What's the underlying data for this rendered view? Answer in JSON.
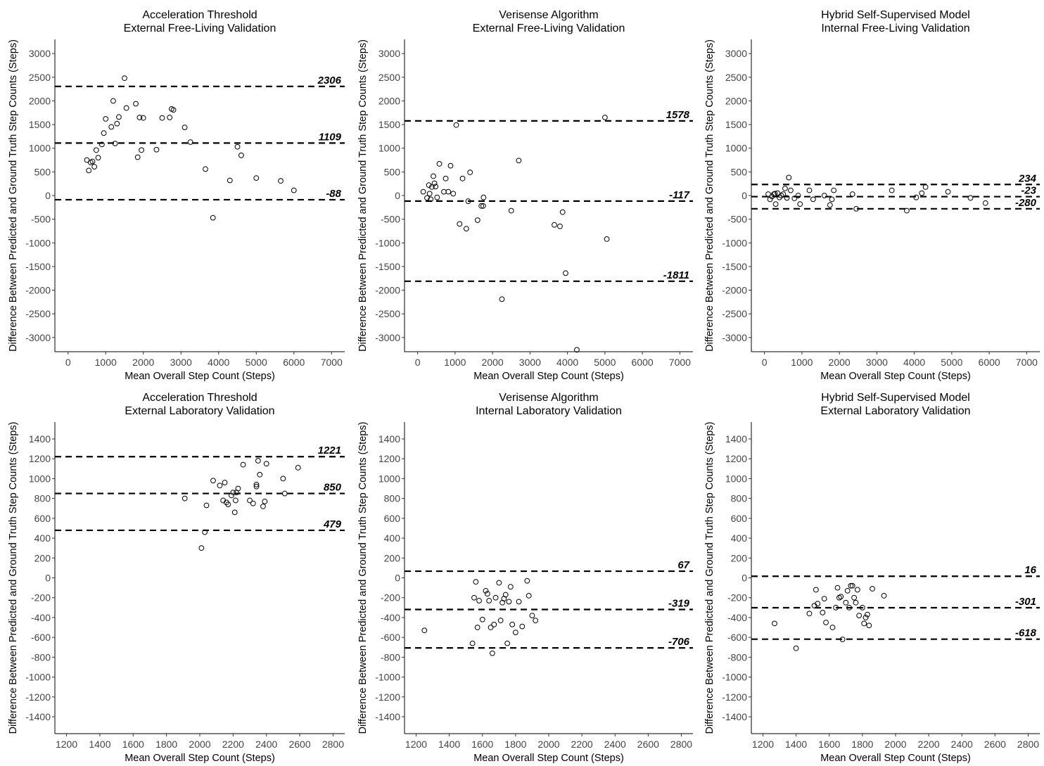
{
  "figure": {
    "x_axis_title": "Mean Overall Step Count (Steps)",
    "y_axis_title": "Difference Between Predicted and Ground Truth Step Counts (Steps)"
  },
  "chart_data": [
    {
      "type": "scatter",
      "title_lines": [
        "Acceleration Threshold",
        "External Free-Living Validation"
      ],
      "xlabel": "Mean Overall Step Count (Steps)",
      "ylabel": "Difference Between Predicted and Ground Truth Step Counts (Steps)",
      "xlim": [
        -350,
        7350
      ],
      "ylim": [
        -3300,
        3300
      ],
      "x_ticks": [
        0,
        1000,
        2000,
        3000,
        4000,
        5000,
        6000,
        7000
      ],
      "y_ticks": [
        -3000,
        -2500,
        -2000,
        -1500,
        -1000,
        -500,
        0,
        500,
        1000,
        1500,
        2000,
        2500,
        3000
      ],
      "reference_lines": [
        {
          "value": 2306,
          "label": "2306"
        },
        {
          "value": 1109,
          "label": "1109"
        },
        {
          "value": -88,
          "label": "-88"
        }
      ],
      "points": [
        [
          500,
          750
        ],
        [
          550,
          530
        ],
        [
          600,
          700
        ],
        [
          650,
          720
        ],
        [
          700,
          610
        ],
        [
          750,
          960
        ],
        [
          800,
          800
        ],
        [
          900,
          1080
        ],
        [
          950,
          1320
        ],
        [
          1000,
          1620
        ],
        [
          1150,
          1450
        ],
        [
          1200,
          2000
        ],
        [
          1250,
          1100
        ],
        [
          1300,
          1520
        ],
        [
          1350,
          1660
        ],
        [
          1500,
          2480
        ],
        [
          1550,
          1850
        ],
        [
          1800,
          1940
        ],
        [
          1850,
          810
        ],
        [
          1900,
          1650
        ],
        [
          1950,
          960
        ],
        [
          2000,
          1640
        ],
        [
          2350,
          970
        ],
        [
          2500,
          1640
        ],
        [
          2700,
          1650
        ],
        [
          2750,
          1830
        ],
        [
          2800,
          1810
        ],
        [
          3100,
          1440
        ],
        [
          3250,
          1130
        ],
        [
          3650,
          560
        ],
        [
          3850,
          -470
        ],
        [
          4300,
          320
        ],
        [
          4500,
          1030
        ],
        [
          4600,
          850
        ],
        [
          5000,
          370
        ],
        [
          5650,
          310
        ],
        [
          6000,
          110
        ]
      ]
    },
    {
      "type": "scatter",
      "title_lines": [
        "Verisense Algorithm",
        "External Free-Living Validation"
      ],
      "xlabel": "Mean Overall Step Count (Steps)",
      "ylabel": "Difference Between Predicted and Ground Truth Step Counts (Steps)",
      "xlim": [
        -350,
        7350
      ],
      "ylim": [
        -3300,
        3300
      ],
      "x_ticks": [
        0,
        1000,
        2000,
        3000,
        4000,
        5000,
        6000,
        7000
      ],
      "y_ticks": [
        -3000,
        -2500,
        -2000,
        -1500,
        -1000,
        -500,
        0,
        500,
        1000,
        1500,
        2000,
        2500,
        3000
      ],
      "reference_lines": [
        {
          "value": 1578,
          "label": "1578"
        },
        {
          "value": -117,
          "label": "-117"
        },
        {
          "value": -1811,
          "label": "-1811"
        }
      ],
      "points": [
        [
          150,
          80
        ],
        [
          250,
          -50
        ],
        [
          300,
          220
        ],
        [
          320,
          40
        ],
        [
          350,
          -80
        ],
        [
          380,
          180
        ],
        [
          420,
          410
        ],
        [
          450,
          260
        ],
        [
          480,
          190
        ],
        [
          520,
          -40
        ],
        [
          580,
          670
        ],
        [
          700,
          80
        ],
        [
          750,
          360
        ],
        [
          820,
          80
        ],
        [
          880,
          630
        ],
        [
          950,
          40
        ],
        [
          1030,
          1490
        ],
        [
          1120,
          -600
        ],
        [
          1200,
          360
        ],
        [
          1300,
          -700
        ],
        [
          1350,
          -120
        ],
        [
          1400,
          490
        ],
        [
          1600,
          -520
        ],
        [
          1700,
          -220
        ],
        [
          1750,
          -220
        ],
        [
          1760,
          -40
        ],
        [
          2500,
          -320
        ],
        [
          2700,
          740
        ],
        [
          3650,
          -620
        ],
        [
          3800,
          -650
        ],
        [
          3870,
          -350
        ],
        [
          3950,
          -1640
        ],
        [
          4250,
          -3260
        ],
        [
          5000,
          1650
        ],
        [
          5050,
          -920
        ],
        [
          2250,
          -2190
        ]
      ]
    },
    {
      "type": "scatter",
      "title_lines": [
        "Hybrid Self-Supervised Model",
        "Internal Free-Living Validation"
      ],
      "xlabel": "Mean Overall Step Count (Steps)",
      "ylabel": "Difference Between Predicted and Ground Truth Step Counts (Steps)",
      "xlim": [
        -350,
        7350
      ],
      "ylim": [
        -3300,
        3300
      ],
      "x_ticks": [
        0,
        1000,
        2000,
        3000,
        4000,
        5000,
        6000,
        7000
      ],
      "y_ticks": [
        -3000,
        -2500,
        -2000,
        -1500,
        -1000,
        -500,
        0,
        500,
        1000,
        1500,
        2000,
        2500,
        3000
      ],
      "reference_lines": [
        {
          "value": 234,
          "label": "234"
        },
        {
          "value": -23,
          "label": "-23"
        },
        {
          "value": -280,
          "label": "-280"
        }
      ],
      "points": [
        [
          100,
          30
        ],
        [
          150,
          -80
        ],
        [
          200,
          -20
        ],
        [
          250,
          30
        ],
        [
          280,
          40
        ],
        [
          300,
          -180
        ],
        [
          350,
          50
        ],
        [
          400,
          -40
        ],
        [
          450,
          0
        ],
        [
          500,
          30
        ],
        [
          550,
          150
        ],
        [
          600,
          -50
        ],
        [
          650,
          380
        ],
        [
          700,
          110
        ],
        [
          800,
          -60
        ],
        [
          900,
          0
        ],
        [
          950,
          -180
        ],
        [
          1200,
          110
        ],
        [
          1300,
          -80
        ],
        [
          1600,
          0
        ],
        [
          1750,
          -200
        ],
        [
          1800,
          -80
        ],
        [
          1850,
          110
        ],
        [
          2350,
          30
        ],
        [
          2450,
          -280
        ],
        [
          3400,
          110
        ],
        [
          3800,
          -320
        ],
        [
          4050,
          -40
        ],
        [
          4200,
          50
        ],
        [
          4300,
          180
        ],
        [
          4900,
          80
        ],
        [
          5500,
          -50
        ],
        [
          5900,
          -160
        ]
      ]
    },
    {
      "type": "scatter",
      "title_lines": [
        "Acceleration Threshold",
        "External Laboratory Validation"
      ],
      "xlabel": "Mean Overall Step Count (Steps)",
      "ylabel": "Difference Between Predicted and Ground Truth Step Counts (Steps)",
      "xlim": [
        1130,
        2870
      ],
      "ylim": [
        -1570,
        1570
      ],
      "x_ticks": [
        1200,
        1400,
        1600,
        1800,
        2000,
        2200,
        2400,
        2600,
        2800
      ],
      "y_ticks": [
        -1400,
        -1200,
        -1000,
        -800,
        -600,
        -400,
        -200,
        0,
        200,
        400,
        600,
        800,
        1000,
        1200,
        1400
      ],
      "reference_lines": [
        {
          "value": 1221,
          "label": "1221"
        },
        {
          "value": 850,
          "label": "850"
        },
        {
          "value": 479,
          "label": "479"
        }
      ],
      "points": [
        [
          1910,
          800
        ],
        [
          2010,
          300
        ],
        [
          2030,
          460
        ],
        [
          2040,
          730
        ],
        [
          2080,
          980
        ],
        [
          2120,
          930
        ],
        [
          2140,
          780
        ],
        [
          2150,
          960
        ],
        [
          2160,
          760
        ],
        [
          2170,
          740
        ],
        [
          2190,
          830
        ],
        [
          2200,
          860
        ],
        [
          2210,
          660
        ],
        [
          2215,
          780
        ],
        [
          2230,
          900
        ],
        [
          2260,
          1140
        ],
        [
          2300,
          780
        ],
        [
          2320,
          750
        ],
        [
          2340,
          940
        ],
        [
          2350,
          1180
        ],
        [
          2360,
          1040
        ],
        [
          2380,
          720
        ],
        [
          2390,
          770
        ],
        [
          2400,
          1150
        ],
        [
          2500,
          1000
        ],
        [
          2510,
          850
        ],
        [
          2590,
          1110
        ],
        [
          2220,
          860
        ],
        [
          2340,
          920
        ]
      ]
    },
    {
      "type": "scatter",
      "title_lines": [
        "Verisense Algorithm",
        "Internal Laboratory Validation"
      ],
      "xlabel": "Mean Overall Step Count (Steps)",
      "ylabel": "Difference Between Predicted and Ground Truth Step Counts (Steps)",
      "xlim": [
        1130,
        2870
      ],
      "ylim": [
        -1570,
        1570
      ],
      "x_ticks": [
        1200,
        1400,
        1600,
        1800,
        2000,
        2200,
        2400,
        2600,
        2800
      ],
      "y_ticks": [
        -1400,
        -1200,
        -1000,
        -800,
        -600,
        -400,
        -200,
        0,
        200,
        400,
        600,
        800,
        1000,
        1200,
        1400
      ],
      "reference_lines": [
        {
          "value": 67,
          "label": "67"
        },
        {
          "value": -319,
          "label": "-319"
        },
        {
          "value": -706,
          "label": "-706"
        }
      ],
      "points": [
        [
          1250,
          -530
        ],
        [
          1540,
          -660
        ],
        [
          1550,
          -200
        ],
        [
          1560,
          -40
        ],
        [
          1570,
          -500
        ],
        [
          1580,
          -230
        ],
        [
          1600,
          -420
        ],
        [
          1620,
          -130
        ],
        [
          1640,
          -230
        ],
        [
          1650,
          -500
        ],
        [
          1660,
          -760
        ],
        [
          1670,
          -470
        ],
        [
          1680,
          -200
        ],
        [
          1700,
          -50
        ],
        [
          1710,
          -430
        ],
        [
          1720,
          -250
        ],
        [
          1730,
          -210
        ],
        [
          1740,
          -170
        ],
        [
          1750,
          -660
        ],
        [
          1760,
          -240
        ],
        [
          1770,
          -90
        ],
        [
          1780,
          -470
        ],
        [
          1800,
          -550
        ],
        [
          1820,
          -240
        ],
        [
          1840,
          -490
        ],
        [
          1870,
          -30
        ],
        [
          1880,
          -180
        ],
        [
          1900,
          -380
        ],
        [
          1920,
          -430
        ],
        [
          1630,
          -160
        ]
      ]
    },
    {
      "type": "scatter",
      "title_lines": [
        "Hybrid Self-Supervised Model",
        "External Laboratory Validation"
      ],
      "xlabel": "Mean Overall Step Count (Steps)",
      "ylabel": "Difference Between Predicted and Ground Truth Step Counts (Steps)",
      "xlim": [
        1130,
        2870
      ],
      "ylim": [
        -1570,
        1570
      ],
      "x_ticks": [
        1200,
        1400,
        1600,
        1800,
        2000,
        2200,
        2400,
        2600,
        2800
      ],
      "y_ticks": [
        -1400,
        -1200,
        -1000,
        -800,
        -600,
        -400,
        -200,
        0,
        200,
        400,
        600,
        800,
        1000,
        1200,
        1400
      ],
      "reference_lines": [
        {
          "value": 16,
          "label": "16"
        },
        {
          "value": -301,
          "label": "-301"
        },
        {
          "value": -618,
          "label": "-618"
        }
      ],
      "points": [
        [
          1270,
          -460
        ],
        [
          1400,
          -710
        ],
        [
          1480,
          -360
        ],
        [
          1510,
          -280
        ],
        [
          1520,
          -120
        ],
        [
          1530,
          -260
        ],
        [
          1560,
          -350
        ],
        [
          1570,
          -210
        ],
        [
          1580,
          -450
        ],
        [
          1620,
          -500
        ],
        [
          1640,
          -300
        ],
        [
          1650,
          -100
        ],
        [
          1660,
          -200
        ],
        [
          1670,
          -190
        ],
        [
          1680,
          -620
        ],
        [
          1700,
          -250
        ],
        [
          1710,
          -130
        ],
        [
          1720,
          -300
        ],
        [
          1730,
          -80
        ],
        [
          1740,
          -80
        ],
        [
          1750,
          -200
        ],
        [
          1760,
          -250
        ],
        [
          1770,
          -120
        ],
        [
          1780,
          -380
        ],
        [
          1800,
          -300
        ],
        [
          1810,
          -460
        ],
        [
          1820,
          -400
        ],
        [
          1830,
          -370
        ],
        [
          1840,
          -480
        ],
        [
          1860,
          -110
        ],
        [
          1930,
          -180
        ]
      ]
    }
  ]
}
